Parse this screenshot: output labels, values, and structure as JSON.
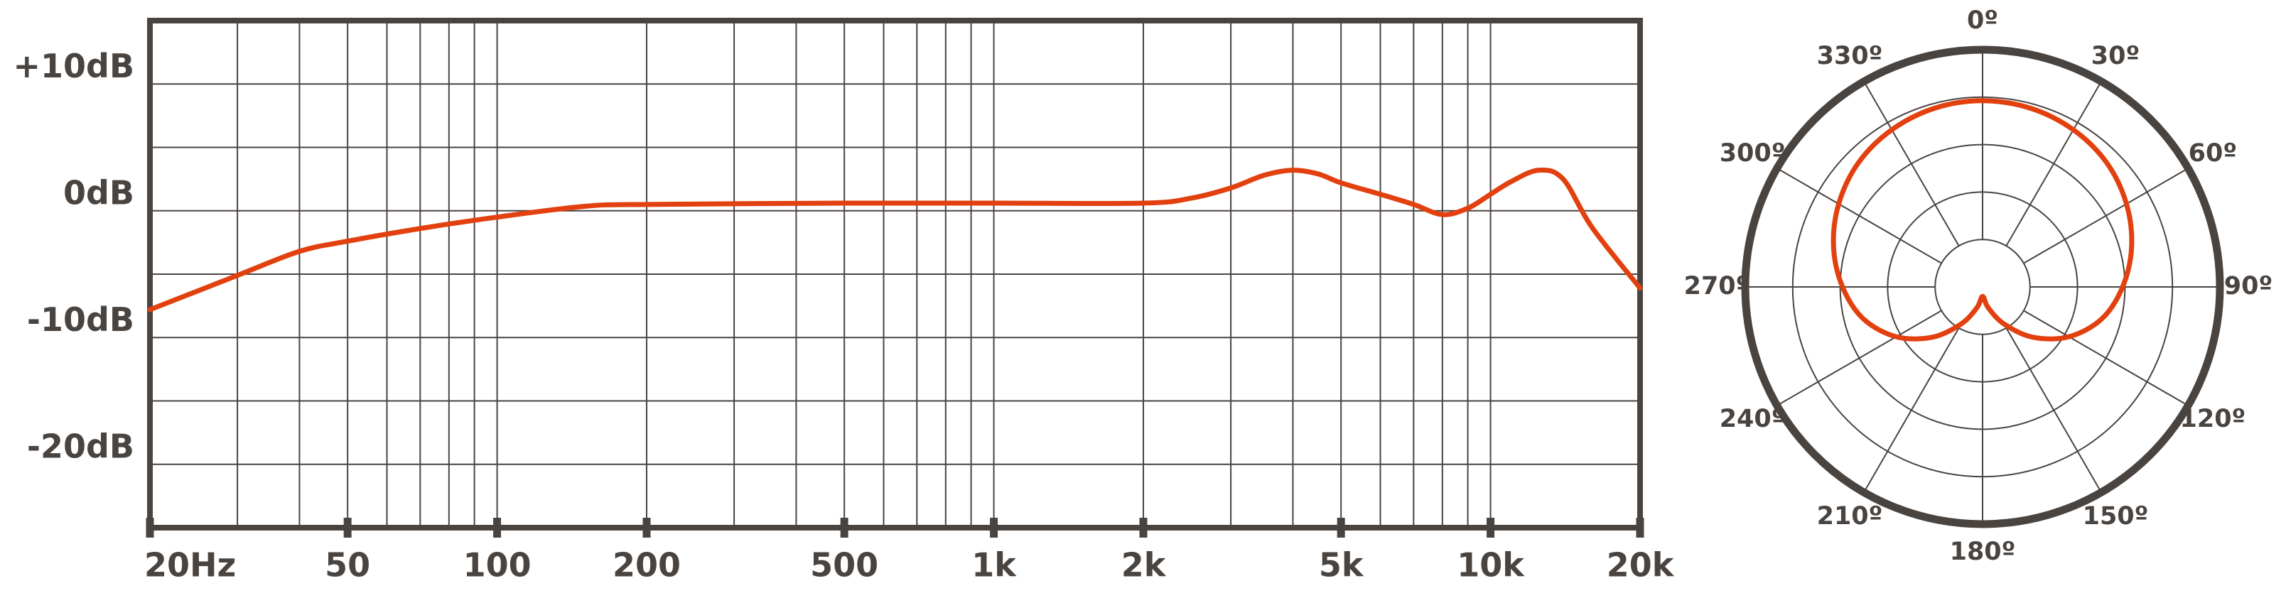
{
  "chart_data": [
    {
      "type": "line",
      "xscale": "log",
      "color": "#e2400f",
      "x": [
        20,
        30,
        40,
        50,
        70,
        100,
        150,
        200,
        500,
        1000,
        2000,
        2500,
        3000,
        3500,
        4000,
        4500,
        5000,
        6000,
        7000,
        8000,
        9000,
        10000,
        11000,
        12500,
        14000,
        16000,
        20000
      ],
      "values": [
        -7.8,
        -5.1,
        -3.2,
        -2.4,
        -1.4,
        -0.5,
        0.35,
        0.5,
        0.6,
        0.6,
        0.6,
        1.0,
        1.8,
        2.8,
        3.2,
        2.9,
        2.2,
        1.3,
        0.5,
        -0.3,
        0.2,
        1.3,
        2.3,
        3.2,
        2.5,
        -1.3,
        -6.1
      ],
      "xlim": [
        20,
        20000
      ],
      "xticks": [
        {
          "value": 20,
          "label": "20Hz"
        },
        50,
        100,
        200,
        500,
        {
          "value": 1000,
          "label": "1k"
        },
        {
          "value": 2000,
          "label": "2k"
        },
        {
          "value": 5000,
          "label": "5k"
        },
        {
          "value": 10000,
          "label": "10k"
        },
        {
          "value": 20000,
          "label": "20k"
        }
      ],
      "xgrid": [
        30,
        40,
        50,
        60,
        70,
        80,
        90,
        100,
        200,
        300,
        400,
        500,
        600,
        700,
        800,
        900,
        1000,
        2000,
        3000,
        4000,
        5000,
        6000,
        7000,
        8000,
        9000,
        10000
      ],
      "ylim": [
        -25,
        15
      ],
      "yticks": [
        {
          "value": 10,
          "label": "+10dB"
        },
        {
          "value": 0,
          "label": "0dB"
        },
        {
          "value": -10,
          "label": "-10dB"
        },
        {
          "value": -20,
          "label": "-20dB"
        }
      ],
      "ygrid": [
        -20,
        -15,
        -10,
        -5,
        0,
        5,
        10
      ],
      "grid": true
    },
    {
      "type": "polar",
      "color": "#e2400f",
      "angles": [
        0,
        15,
        30,
        45,
        60,
        75,
        90,
        105,
        120,
        135,
        150,
        165,
        180,
        195,
        210,
        225,
        240,
        255,
        270,
        285,
        300,
        315,
        330,
        345
      ],
      "values": [
        0.785,
        0.78,
        0.765,
        0.74,
        0.7,
        0.65,
        0.59,
        0.52,
        0.42,
        0.3,
        0.18,
        0.09,
        0.04,
        0.09,
        0.18,
        0.3,
        0.42,
        0.52,
        0.59,
        0.65,
        0.7,
        0.74,
        0.765,
        0.78
      ],
      "rlim": [
        0,
        1
      ],
      "rticks": [
        0.2,
        0.4,
        0.6,
        0.8
      ],
      "angleticks": [
        {
          "value": 0,
          "label": "0º"
        },
        {
          "value": 30,
          "label": "30º"
        },
        {
          "value": 60,
          "label": "60º"
        },
        {
          "value": 90,
          "label": "90º"
        },
        {
          "value": 120,
          "label": "120º"
        },
        {
          "value": 150,
          "label": "150º"
        },
        {
          "value": 180,
          "label": "180º"
        },
        {
          "value": 210,
          "label": "210º"
        },
        {
          "value": 240,
          "label": "240º"
        },
        {
          "value": 270,
          "label": "270º"
        },
        {
          "value": 300,
          "label": "300º"
        },
        {
          "value": 330,
          "label": "330º"
        }
      ]
    }
  ]
}
